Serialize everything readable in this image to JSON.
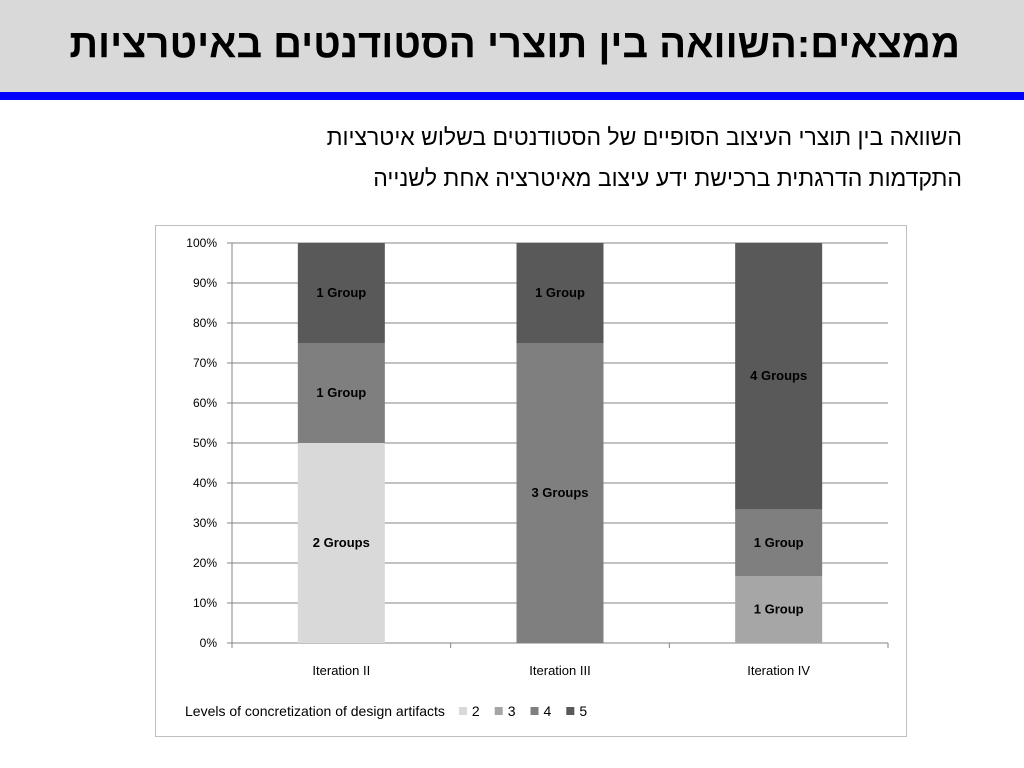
{
  "title": "ממצאים:השוואה בין תוצרי הסטודנטים באיטרציות",
  "subtitle_lines": [
    "השוואה בין תוצרי העיצוב הסופיים של הסטודנטים בשלוש איטרציות",
    "התקדמות הדרגתית ברכישת ידע עיצוב מאיטרציה אחת לשנייה"
  ],
  "colors": {
    "title_bg": "#d9d9d9",
    "title_rule": "#0000ff"
  },
  "chart_data": {
    "type": "bar",
    "stacked": true,
    "percent_stacked": true,
    "categories": [
      "Iteration II",
      "Iteration III",
      "Iteration IV"
    ],
    "series": [
      {
        "name": "2",
        "values": [
          50,
          0,
          0
        ],
        "labels": [
          "2 Groups",
          "",
          ""
        ],
        "color": "#d9d9d9"
      },
      {
        "name": "3",
        "values": [
          0,
          0,
          16.7
        ],
        "labels": [
          "",
          "",
          "1 Group"
        ],
        "color": "#a6a6a6"
      },
      {
        "name": "4",
        "values": [
          25,
          75,
          16.7
        ],
        "labels": [
          "1 Group",
          "3 Groups",
          "1 Group"
        ],
        "color": "#7f7f7f"
      },
      {
        "name": "5",
        "values": [
          25,
          25,
          66.6
        ],
        "labels": [
          "1 Group",
          "1 Group",
          "4 Groups"
        ],
        "color": "#595959"
      }
    ],
    "ylim": [
      0,
      100
    ],
    "yticks": [
      "0%",
      "10%",
      "20%",
      "30%",
      "40%",
      "50%",
      "60%",
      "70%",
      "80%",
      "90%",
      "100%"
    ],
    "grid": true,
    "legend_title": "Levels of concretization of design artifacts",
    "legend_position": "bottom"
  }
}
